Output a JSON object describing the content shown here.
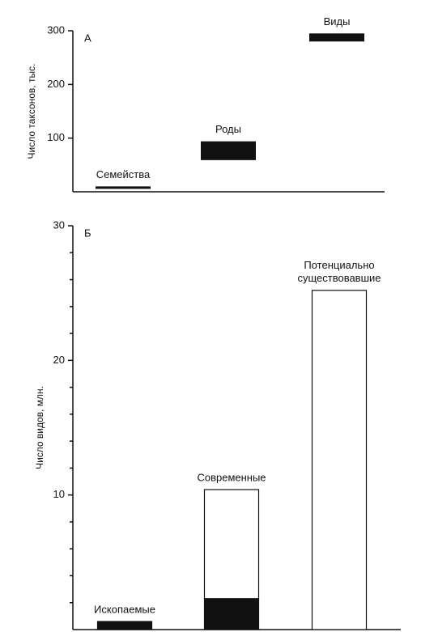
{
  "chart_data": [
    {
      "type": "range",
      "panel_label": "А",
      "ylabel": "Число таксонов, тыс.",
      "categories": [
        "Семейства",
        "Роды",
        "Виды"
      ],
      "low": [
        8,
        59,
        280
      ],
      "high": [
        10,
        94,
        295
      ],
      "color": "#111",
      "ylim": [
        0,
        300
      ],
      "yticks": [
        100,
        200,
        300
      ]
    },
    {
      "type": "stacked_bar",
      "panel_label": "Б",
      "ylabel": "Число видов, млн.",
      "categories": [
        "Ископаемые",
        "Современные",
        "Потенциально\nсуществовавшие"
      ],
      "series": [
        {
          "color": "#111",
          "values": [
            0.6,
            2.3,
            null
          ]
        },
        {
          "color": "#ffffff",
          "values": [
            null,
            8.1,
            25.2
          ]
        }
      ],
      "ylim": [
        0,
        30
      ],
      "yticks": [
        10,
        20,
        30
      ],
      "minor_yticks": [
        2,
        4,
        6,
        8,
        12,
        14,
        16,
        18,
        22,
        24,
        26,
        28
      ]
    }
  ]
}
